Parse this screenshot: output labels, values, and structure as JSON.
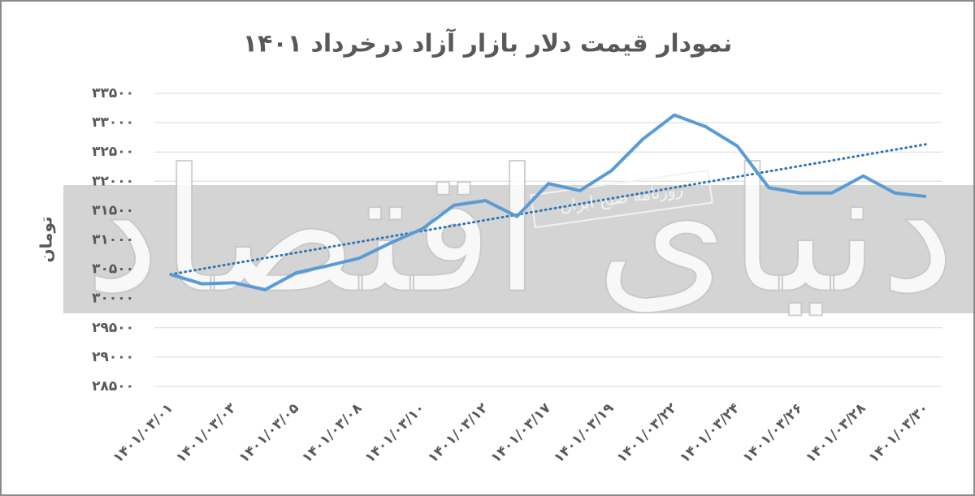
{
  "chart_data": {
    "type": "line",
    "title": "نمودار قیمت دلار بازار آزاد درخرداد ۱۴۰۱",
    "y_label": "تومان",
    "categories": [
      "۱۴۰۱/۰۳/۰۱",
      null,
      "۱۴۰۱/۰۳/۰۳",
      null,
      "۱۴۰۱/۰۳/۰۵",
      null,
      "۱۴۰۱/۰۳/۰۸",
      null,
      "۱۴۰۱/۰۳/۱۰",
      null,
      "۱۴۰۱/۰۳/۱۲",
      null,
      "۱۴۰۱/۰۳/۱۷",
      null,
      "۱۴۰۱/۰۳/۱۹",
      null,
      "۱۴۰۱/۰۳/۲۲",
      null,
      "۱۴۰۱/۰۳/۲۴",
      null,
      "۱۴۰۱/۰۳/۲۶",
      null,
      "۱۴۰۱/۰۳/۲۸",
      null,
      "۱۴۰۱/۰۳/۳۰"
    ],
    "values": [
      30410,
      30250,
      30270,
      30150,
      30440,
      30560,
      30690,
      30950,
      31190,
      31590,
      31670,
      31400,
      31960,
      31840,
      32180,
      32720,
      33130,
      32930,
      32600,
      31890,
      31800,
      31800,
      32090,
      31800,
      31740
    ],
    "color": "#5b9bd5",
    "trendline": true,
    "trend_color": "#2e75b6",
    "ylim": [
      28500,
      33500
    ],
    "yticks": [
      {
        "value": 28500,
        "label": "۲۸۵۰۰"
      },
      {
        "value": 29000,
        "label": "۲۹۰۰۰"
      },
      {
        "value": 29500,
        "label": "۲۹۵۰۰"
      },
      {
        "value": 30000,
        "label": "۳۰۰۰۰"
      },
      {
        "value": 30500,
        "label": "۳۰۵۰۰"
      },
      {
        "value": 31000,
        "label": "۳۱۰۰۰"
      },
      {
        "value": 31500,
        "label": "۳۱۵۰۰"
      },
      {
        "value": 32000,
        "label": "۳۲۰۰۰"
      },
      {
        "value": 32500,
        "label": "۳۲۵۰۰"
      },
      {
        "value": 33000,
        "label": "۳۳۰۰۰"
      },
      {
        "value": 33500,
        "label": "۳۳۵۰۰"
      }
    ],
    "grid": true,
    "watermark": {
      "text": "دنیای اقتصاد",
      "subtext": "روزنامه صبح ایران"
    }
  }
}
